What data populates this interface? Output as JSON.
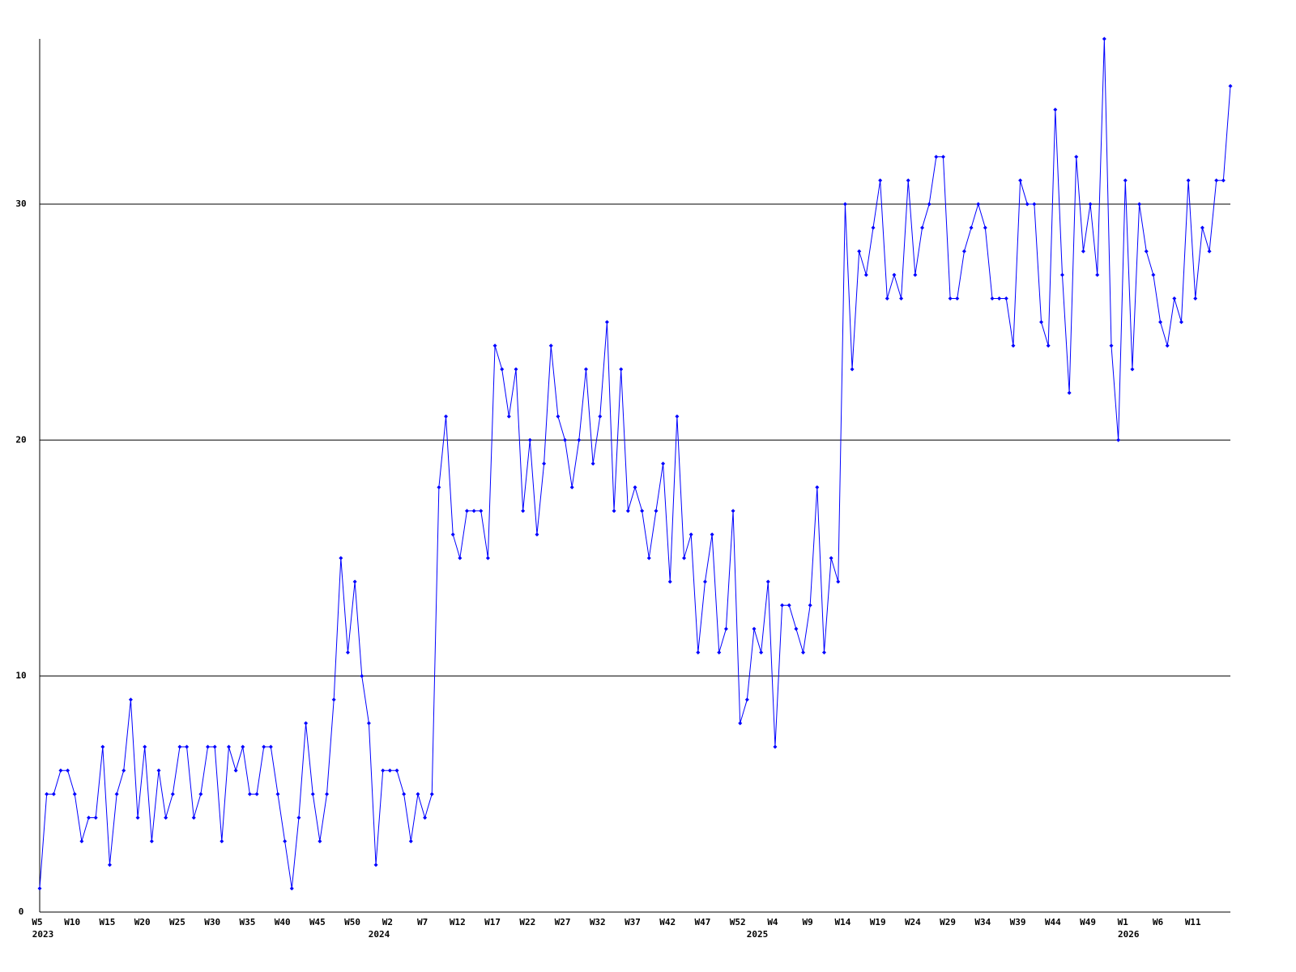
{
  "chart_data": {
    "type": "line",
    "color": "#0000ff",
    "grid": true,
    "ylim": [
      0,
      37
    ],
    "yticks": [
      0,
      10,
      20,
      30
    ],
    "categories": [
      "W5",
      null,
      null,
      null,
      null,
      "W10",
      null,
      null,
      null,
      null,
      "W15",
      null,
      null,
      null,
      null,
      "W20",
      null,
      null,
      null,
      null,
      "W25",
      null,
      null,
      null,
      null,
      "W30",
      null,
      null,
      null,
      null,
      "W35",
      null,
      null,
      null,
      null,
      "W40",
      null,
      null,
      null,
      null,
      "W45",
      null,
      null,
      null,
      null,
      "W50",
      null,
      null,
      null,
      null,
      "W2",
      null,
      null,
      null,
      null,
      "W7",
      null,
      null,
      null,
      null,
      "W12",
      null,
      null,
      null,
      null,
      "W17",
      null,
      null,
      null,
      null,
      "W22",
      null,
      null,
      null,
      null,
      "W27",
      null,
      null,
      null,
      null,
      "W32",
      null,
      null,
      null,
      null,
      "W37",
      null,
      null,
      null,
      null,
      "W42",
      null,
      null,
      null,
      null,
      "W47",
      null,
      null,
      null,
      null,
      "W52",
      null,
      null,
      null,
      null,
      "W4",
      null,
      null,
      null,
      null,
      "W9",
      null,
      null,
      null,
      null,
      "W14",
      null,
      null,
      null,
      null,
      "W19",
      null,
      null,
      null,
      null,
      "W24",
      null,
      null,
      null,
      null,
      "W29",
      null,
      null,
      null,
      null,
      "W34",
      null,
      null,
      null,
      null,
      "W39",
      null,
      null,
      null,
      null,
      "W44",
      null,
      null,
      null,
      null,
      "W49",
      null,
      null,
      null,
      null,
      "W1",
      null,
      null,
      null,
      null,
      "W6",
      null,
      null,
      null,
      null,
      "W11",
      null,
      null,
      null,
      null,
      null
    ],
    "years": [
      "2023",
      null,
      null,
      null,
      null,
      null,
      null,
      null,
      null,
      null,
      null,
      null,
      null,
      null,
      null,
      null,
      null,
      null,
      null,
      null,
      null,
      null,
      null,
      null,
      null,
      null,
      null,
      null,
      null,
      null,
      null,
      null,
      null,
      null,
      null,
      null,
      null,
      null,
      null,
      null,
      null,
      null,
      null,
      null,
      null,
      null,
      null,
      null,
      "2024",
      null,
      null,
      null,
      null,
      null,
      null,
      null,
      null,
      null,
      null,
      null,
      null,
      null,
      null,
      null,
      null,
      null,
      null,
      null,
      null,
      null,
      null,
      null,
      null,
      null,
      null,
      null,
      null,
      null,
      null,
      null,
      null,
      null,
      null,
      null,
      null,
      null,
      null,
      null,
      null,
      null,
      null,
      null,
      null,
      null,
      null,
      null,
      null,
      null,
      null,
      null,
      null,
      null,
      "2025",
      null,
      null,
      null,
      null,
      null,
      null,
      null,
      null,
      null,
      null,
      null,
      null,
      null,
      null,
      null,
      null,
      null,
      null,
      null,
      null,
      null,
      null,
      null,
      null,
      null,
      null,
      null,
      null,
      null,
      null,
      null,
      null,
      null,
      null,
      null,
      null,
      null,
      null,
      null,
      null,
      null,
      null,
      null,
      null,
      null,
      null,
      null,
      null,
      null,
      null,
      null,
      null,
      "2026",
      null,
      null,
      null,
      null,
      null,
      null,
      null,
      null,
      null,
      null,
      null,
      null,
      null,
      null,
      null
    ],
    "values": [
      1,
      5,
      5,
      6,
      6,
      5,
      3,
      4,
      4,
      7,
      2,
      5,
      6,
      9,
      4,
      7,
      3,
      6,
      4,
      5,
      7,
      7,
      4,
      5,
      7,
      7,
      3,
      7,
      6,
      7,
      5,
      5,
      7,
      7,
      5,
      3,
      1,
      4,
      8,
      5,
      3,
      5,
      9,
      15,
      11,
      14,
      10,
      8,
      2,
      6,
      6,
      6,
      5,
      3,
      5,
      4,
      5,
      18,
      21,
      16,
      15,
      17,
      17,
      17,
      15,
      24,
      23,
      21,
      23,
      17,
      20,
      16,
      19,
      24,
      21,
      20,
      18,
      20,
      23,
      19,
      21,
      25,
      17,
      23,
      17,
      18,
      17,
      15,
      17,
      19,
      14,
      21,
      15,
      16,
      11,
      14,
      16,
      11,
      12,
      17,
      8,
      9,
      12,
      11,
      14,
      7,
      13,
      13,
      12,
      11,
      13,
      18,
      11,
      15,
      14,
      30,
      23,
      28,
      27,
      29,
      31,
      26,
      27,
      26,
      31,
      27,
      29,
      30,
      32,
      32,
      26,
      26,
      28,
      29,
      30,
      29,
      26,
      26,
      26,
      24,
      31,
      30,
      30,
      25,
      24,
      34,
      27,
      22,
      32,
      28,
      30,
      27,
      37,
      24,
      20,
      31,
      23,
      30,
      28,
      27,
      25,
      24,
      26,
      25,
      31,
      26,
      29,
      28,
      31,
      31,
      35
    ]
  }
}
